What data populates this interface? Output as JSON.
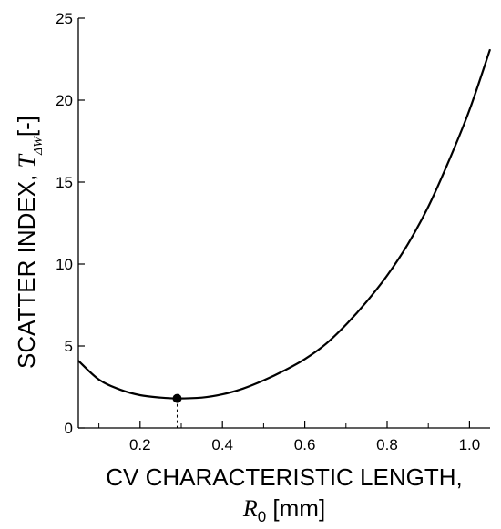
{
  "chart_data": {
    "type": "line",
    "title": "",
    "xlabel": "CV CHARACTERISTIC LENGTH,",
    "xlabel_symbol": "R",
    "xlabel_symbol_sub": "0",
    "xlabel_unit": "[mm]",
    "ylabel": "SCATTER INDEX,",
    "ylabel_symbol": "T",
    "ylabel_symbol_sub": "ΔW",
    "ylabel_unit": "[-]",
    "xlim": [
      0.05,
      1.05
    ],
    "ylim": [
      0,
      25
    ],
    "x_ticks": [
      0.2,
      0.4,
      0.6,
      0.8,
      1.0
    ],
    "x_tick_labels": [
      "0.2",
      "0.4",
      "0.6",
      "0.8",
      "1.0"
    ],
    "x_minor_ticks": [
      0.1,
      0.3,
      0.5,
      0.7,
      0.9
    ],
    "y_ticks": [
      0,
      5,
      10,
      15,
      20,
      25
    ],
    "y_tick_labels": [
      "0",
      "5",
      "10",
      "15",
      "20",
      "25"
    ],
    "grid": false,
    "series": [
      {
        "color": "#000000",
        "x": [
          0.05,
          0.1,
          0.15,
          0.2,
          0.25,
          0.29,
          0.35,
          0.4,
          0.45,
          0.5,
          0.55,
          0.6,
          0.65,
          0.7,
          0.75,
          0.8,
          0.85,
          0.9,
          0.95,
          1.0,
          1.05
        ],
        "y": [
          4.1,
          2.95,
          2.35,
          2.0,
          1.85,
          1.8,
          1.85,
          2.05,
          2.4,
          2.9,
          3.5,
          4.2,
          5.1,
          6.3,
          7.7,
          9.3,
          11.2,
          13.5,
          16.3,
          19.4,
          23.1
        ]
      }
    ],
    "marker": {
      "x": 0.29,
      "y": 1.8,
      "color": "#000000"
    }
  }
}
